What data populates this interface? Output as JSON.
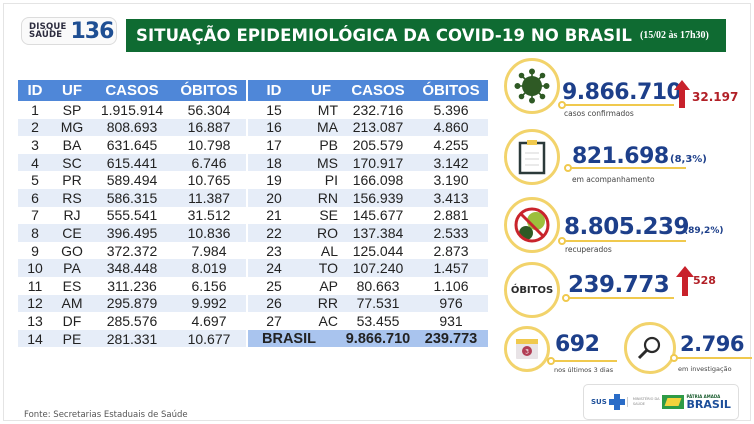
{
  "header": {
    "logo_small_line1": "DISQUE",
    "logo_small_line2": "SAÚDE",
    "logo_number": "136",
    "title": "SITUAÇÃO EPIDEMIOLÓGICA DA COVID-19 NO BRASIL",
    "date": "(15/02 às 17h30)"
  },
  "table": {
    "columns": [
      "ID",
      "UF",
      "CASOS",
      "ÓBITOS"
    ],
    "left_rows": [
      {
        "id": "1",
        "uf": "SP",
        "casos": "1.915.914",
        "obitos": "56.304"
      },
      {
        "id": "2",
        "uf": "MG",
        "casos": "808.693",
        "obitos": "16.887"
      },
      {
        "id": "3",
        "uf": "BA",
        "casos": "631.645",
        "obitos": "10.798"
      },
      {
        "id": "4",
        "uf": "SC",
        "casos": "615.441",
        "obitos": "6.746"
      },
      {
        "id": "5",
        "uf": "PR",
        "casos": "589.494",
        "obitos": "10.765"
      },
      {
        "id": "6",
        "uf": "RS",
        "casos": "586.315",
        "obitos": "11.387"
      },
      {
        "id": "7",
        "uf": "RJ",
        "casos": "555.541",
        "obitos": "31.512"
      },
      {
        "id": "8",
        "uf": "CE",
        "casos": "396.495",
        "obitos": "10.836"
      },
      {
        "id": "9",
        "uf": "GO",
        "casos": "372.372",
        "obitos": "7.984"
      },
      {
        "id": "10",
        "uf": "PA",
        "casos": "348.448",
        "obitos": "8.019"
      },
      {
        "id": "11",
        "uf": "ES",
        "casos": "311.236",
        "obitos": "6.156"
      },
      {
        "id": "12",
        "uf": "AM",
        "casos": "295.879",
        "obitos": "9.992"
      },
      {
        "id": "13",
        "uf": "DF",
        "casos": "285.576",
        "obitos": "4.697"
      },
      {
        "id": "14",
        "uf": "PE",
        "casos": "281.331",
        "obitos": "10.677"
      }
    ],
    "right_rows": [
      {
        "id": "15",
        "uf": "MT",
        "casos": "232.716",
        "obitos": "5.396"
      },
      {
        "id": "16",
        "uf": "MA",
        "casos": "213.087",
        "obitos": "4.860"
      },
      {
        "id": "17",
        "uf": "PB",
        "casos": "205.579",
        "obitos": "4.255"
      },
      {
        "id": "18",
        "uf": "MS",
        "casos": "170.917",
        "obitos": "3.142"
      },
      {
        "id": "19",
        "uf": "PI",
        "casos": "166.098",
        "obitos": "3.190"
      },
      {
        "id": "20",
        "uf": "RN",
        "casos": "156.939",
        "obitos": "3.413"
      },
      {
        "id": "21",
        "uf": "SE",
        "casos": "145.677",
        "obitos": "2.881"
      },
      {
        "id": "22",
        "uf": "RO",
        "casos": "137.384",
        "obitos": "2.533"
      },
      {
        "id": "23",
        "uf": "AL",
        "casos": "125.044",
        "obitos": "2.873"
      },
      {
        "id": "24",
        "uf": "TO",
        "casos": "107.240",
        "obitos": "1.457"
      },
      {
        "id": "25",
        "uf": "AP",
        "casos": "80.663",
        "obitos": "1.106"
      },
      {
        "id": "26",
        "uf": "RR",
        "casos": "77.531",
        "obitos": "976"
      },
      {
        "id": "27",
        "uf": "AC",
        "casos": "53.455",
        "obitos": "931"
      }
    ],
    "total": {
      "label": "BRASIL",
      "casos": "9.866.710",
      "obitos": "239.773"
    }
  },
  "stats": {
    "confirmed": {
      "value": "9.866.710",
      "delta": "32.197",
      "label": "casos confirmados",
      "icon": "virus-icon"
    },
    "monitoring": {
      "value": "821.698",
      "pct": "(8,3%)",
      "label": "em acompanhamento",
      "icon": "clipboard-icon"
    },
    "recovered": {
      "value": "8.805.239",
      "pct": "(89,2%)",
      "label": "recuperados",
      "icon": "no-virus-icon"
    },
    "deaths": {
      "badge": "ÓBITOS",
      "value": "239.773",
      "delta": "528"
    },
    "last3days": {
      "value": "692",
      "label": "nos últimos 3 dias",
      "icon": "calendar-icon",
      "icon_text": "3"
    },
    "investigation": {
      "value": "2.796",
      "label": "em investigação",
      "icon": "magnifier-icon"
    }
  },
  "footer": {
    "source": "Fonte: Secretarias Estaduais de Saúde",
    "partners": {
      "sus": "SUS",
      "ministry_line1": "MINISTÉRIO DA",
      "ministry_line2": "SAÚDE",
      "gov_line1": "PÁTRIA AMADA",
      "gov_line2": "BRASIL"
    }
  },
  "colors": {
    "title_green": "#0f6b32",
    "table_header_blue": "#4f87d8",
    "row_alt": "#e6edf8",
    "total_row": "#a9c4ee",
    "number_blue": "#1d3f8a",
    "accent_yellow": "#f2d36b",
    "delta_red": "#b22027"
  }
}
